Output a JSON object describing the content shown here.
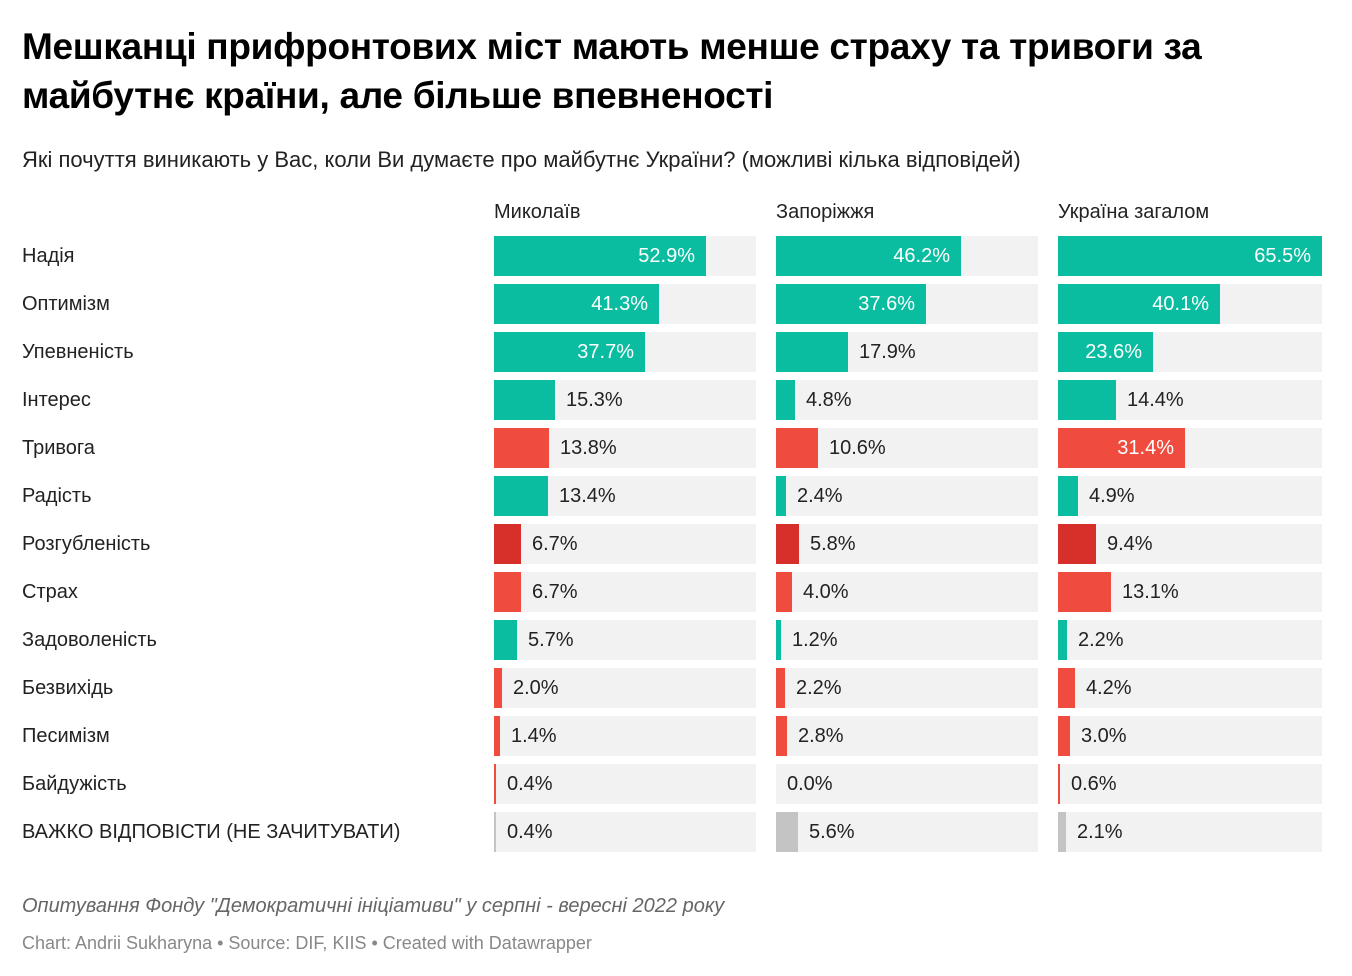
{
  "chart_data": {
    "type": "bar",
    "orientation": "horizontal",
    "layout": "small-multiples",
    "title": "Мешканці прифронтових міст мають менше страху та тривоги за майбутнє країни, але більше впевненості",
    "subtitle": "Які почуття виникають у Вас, коли Ви думаєте про майбутнє України? (можливі кілька відповідей)",
    "categories": [
      "Надія",
      "Оптимізм",
      "Упевненість",
      "Інтерес",
      "Тривога",
      "Радість",
      "Розгубленість",
      "Страх",
      "Задоволеність",
      "Безвихідь",
      "Песимізм",
      "Байдужість",
      "ВАЖКО ВІДПОВІСТИ (НЕ ЗАЧИТУВАТИ)"
    ],
    "category_types": [
      "positive",
      "positive",
      "positive",
      "positive",
      "negative",
      "positive",
      "negative-dark",
      "negative",
      "positive",
      "negative",
      "negative",
      "negative",
      "neutral"
    ],
    "series": [
      {
        "name": "Миколаїв",
        "values": [
          52.9,
          41.3,
          37.7,
          15.3,
          13.8,
          13.4,
          6.7,
          6.7,
          5.7,
          2.0,
          1.4,
          0.4,
          0.4
        ],
        "labels": [
          "52.9%",
          "41.3%",
          "37.7%",
          "15.3%",
          "13.8%",
          "13.4%",
          "6.7%",
          "6.7%",
          "5.7%",
          "2.0%",
          "1.4%",
          "0.4%",
          "0.4%"
        ]
      },
      {
        "name": "Запоріжжя",
        "values": [
          46.2,
          37.6,
          17.9,
          4.8,
          10.6,
          2.4,
          5.8,
          4.0,
          1.2,
          2.2,
          2.8,
          0.0,
          5.6
        ],
        "labels": [
          "46.2%",
          "37.6%",
          "17.9%",
          "4.8%",
          "10.6%",
          "2.4%",
          "5.8%",
          "4.0%",
          "1.2%",
          "2.2%",
          "2.8%",
          "0.0%",
          "5.6%"
        ]
      },
      {
        "name": "Україна загалом",
        "values": [
          65.5,
          40.1,
          23.6,
          14.4,
          31.4,
          4.9,
          9.4,
          13.1,
          2.2,
          4.2,
          3.0,
          0.6,
          2.1
        ],
        "labels": [
          "65.5%",
          "40.1%",
          "23.6%",
          "14.4%",
          "31.4%",
          "4.9%",
          "9.4%",
          "13.1%",
          "2.2%",
          "4.2%",
          "3.0%",
          "0.6%",
          "2.1%"
        ]
      }
    ],
    "xlim": [
      0,
      65.5
    ],
    "unit": "%",
    "colors": {
      "positive": "#0abda0",
      "negative": "#ef4b3e",
      "negative-dark": "#d7302a",
      "neutral": "#c4c4c4",
      "track": "#f2f2f2"
    },
    "notes": "Опитування Фонду \"Демократичні ініціативи\" у серпні - вересні 2022 року",
    "byline": "Chart: Andrii Sukharyna • Source: DIF, KIIS • Created with Datawrapper"
  }
}
